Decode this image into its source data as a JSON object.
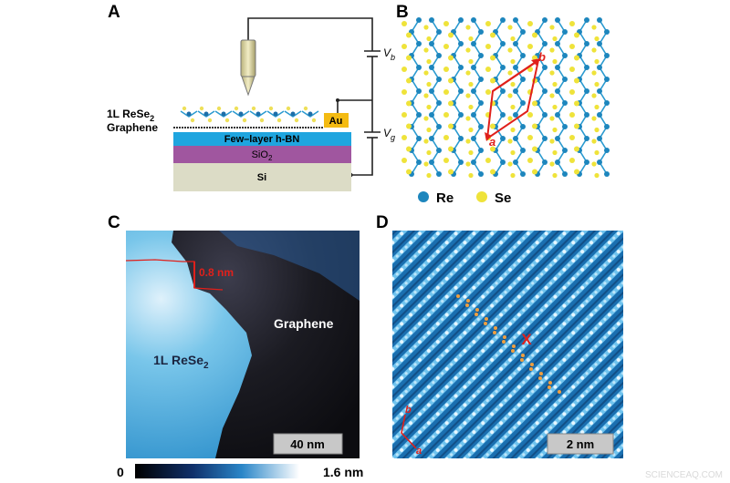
{
  "panels": {
    "a": {
      "label": "A",
      "layer_top": {
        "text": "1L ReSe",
        "sub": "2"
      },
      "layer_graphene": "Graphene",
      "electrode": "Au",
      "hbn": "Few–layer h-BN",
      "sio2": {
        "text": "SiO",
        "sub": "2"
      },
      "si": "Si",
      "vb": {
        "text": "V",
        "sub": "b"
      },
      "vg": {
        "text": "V",
        "sub": "g"
      }
    },
    "b": {
      "label": "B",
      "vector_b": "b",
      "vector_a": "a",
      "legend": [
        "Re",
        "Se"
      ]
    },
    "c": {
      "label": "C",
      "step_height": "0.8 nm",
      "region_graphene": "Graphene",
      "region_rese2": {
        "text": "1L ReSe",
        "sub": "2"
      },
      "scale_bar": "40 nm",
      "colorbar_min": "0",
      "colorbar_max": "1.6 nm"
    },
    "d": {
      "label": "D",
      "scale_bar": "2 nm",
      "vector_b": "b",
      "vector_a": "a",
      "marker": "X"
    }
  },
  "watermark": "SCIENCEAQ.COM"
}
